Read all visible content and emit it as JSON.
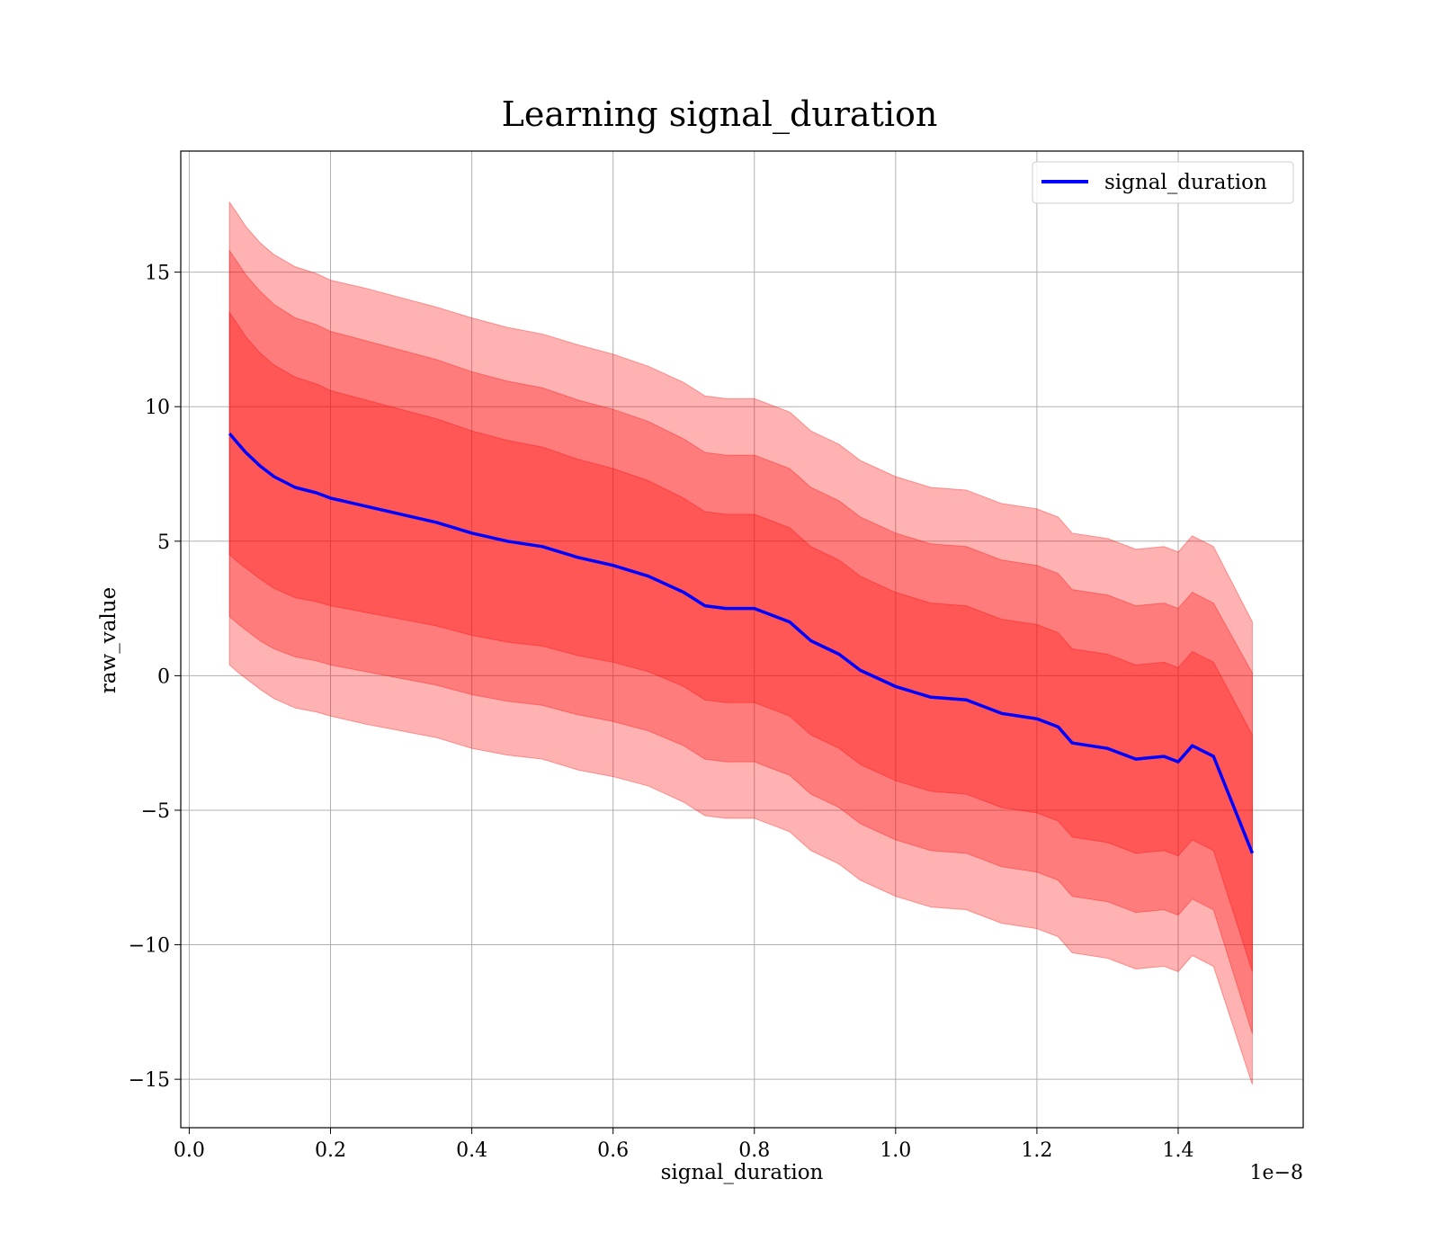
{
  "chart_data": {
    "type": "line",
    "title": "Learning signal_duration",
    "xlabel": "signal_duration",
    "ylabel": "raw_value",
    "x_offset_label": "1e−8",
    "xlim": [
      -0.012,
      1.577
    ],
    "ylim": [
      -16.8,
      19.5
    ],
    "grid": true,
    "legend_position": "top-right",
    "x_ticks": [
      {
        "value": 0.0,
        "label": "0.0"
      },
      {
        "value": 0.2,
        "label": "0.2"
      },
      {
        "value": 0.4,
        "label": "0.4"
      },
      {
        "value": 0.6,
        "label": "0.6"
      },
      {
        "value": 0.8,
        "label": "0.8"
      },
      {
        "value": 1.0,
        "label": "1.0"
      },
      {
        "value": 1.2,
        "label": "1.2"
      },
      {
        "value": 1.4,
        "label": "1.4"
      }
    ],
    "y_ticks": [
      {
        "value": 15,
        "label": "15"
      },
      {
        "value": 10,
        "label": "10"
      },
      {
        "value": 5,
        "label": "5"
      },
      {
        "value": 0,
        "label": "0"
      },
      {
        "value": -5,
        "label": "−5"
      },
      {
        "value": -10,
        "label": "−10"
      },
      {
        "value": -15,
        "label": "−15"
      }
    ],
    "colors": {
      "line": "#0000ff",
      "band": "#ff0000",
      "band_opacity": 0.3
    },
    "series": [
      {
        "name": "signal_duration",
        "x": [
          0.057,
          0.07,
          0.08,
          0.1,
          0.12,
          0.15,
          0.18,
          0.2,
          0.25,
          0.3,
          0.35,
          0.4,
          0.45,
          0.5,
          0.55,
          0.6,
          0.65,
          0.7,
          0.73,
          0.76,
          0.8,
          0.83,
          0.85,
          0.88,
          0.92,
          0.95,
          1.0,
          1.05,
          1.1,
          1.15,
          1.2,
          1.23,
          1.25,
          1.3,
          1.34,
          1.38,
          1.4,
          1.42,
          1.45,
          1.505
        ],
        "y": [
          9.0,
          8.6,
          8.3,
          7.8,
          7.4,
          7.0,
          6.8,
          6.6,
          6.3,
          6.0,
          5.7,
          5.3,
          5.0,
          4.8,
          4.4,
          4.1,
          3.7,
          3.1,
          2.6,
          2.5,
          2.5,
          2.2,
          2.0,
          1.3,
          0.8,
          0.2,
          -0.4,
          -0.8,
          -0.9,
          -1.4,
          -1.6,
          -1.9,
          -2.5,
          -2.7,
          -3.1,
          -3.0,
          -3.2,
          -2.6,
          -3.0,
          -6.6
        ]
      }
    ],
    "bands": [
      {
        "center": "signal_duration",
        "half_width": [
          4.5,
          4.4,
          4.3,
          4.2,
          4.15,
          4.1,
          4.05,
          4.0,
          3.95,
          3.9,
          3.85,
          3.8,
          3.75,
          3.7,
          3.65,
          3.6,
          3.55,
          3.5,
          3.5,
          3.5,
          3.5,
          3.5,
          3.5,
          3.5,
          3.5,
          3.5,
          3.5,
          3.5,
          3.5,
          3.5,
          3.5,
          3.5,
          3.5,
          3.5,
          3.5,
          3.5,
          3.5,
          3.5,
          3.5,
          4.4
        ]
      },
      {
        "center": "signal_duration",
        "half_width": [
          6.8,
          6.7,
          6.6,
          6.5,
          6.4,
          6.3,
          6.25,
          6.2,
          6.15,
          6.1,
          6.05,
          6.0,
          5.95,
          5.9,
          5.85,
          5.8,
          5.75,
          5.7,
          5.7,
          5.7,
          5.7,
          5.7,
          5.7,
          5.7,
          5.7,
          5.7,
          5.7,
          5.7,
          5.7,
          5.7,
          5.7,
          5.7,
          5.7,
          5.7,
          5.7,
          5.7,
          5.7,
          5.7,
          5.7,
          6.7
        ]
      },
      {
        "center": "signal_duration",
        "half_width": [
          8.6,
          8.5,
          8.4,
          8.3,
          8.25,
          8.2,
          8.15,
          8.1,
          8.1,
          8.05,
          8.0,
          8.0,
          7.95,
          7.9,
          7.9,
          7.85,
          7.8,
          7.8,
          7.8,
          7.8,
          7.8,
          7.8,
          7.8,
          7.8,
          7.8,
          7.8,
          7.8,
          7.8,
          7.8,
          7.8,
          7.8,
          7.8,
          7.8,
          7.8,
          7.8,
          7.8,
          7.8,
          7.8,
          7.8,
          8.6
        ]
      }
    ]
  }
}
